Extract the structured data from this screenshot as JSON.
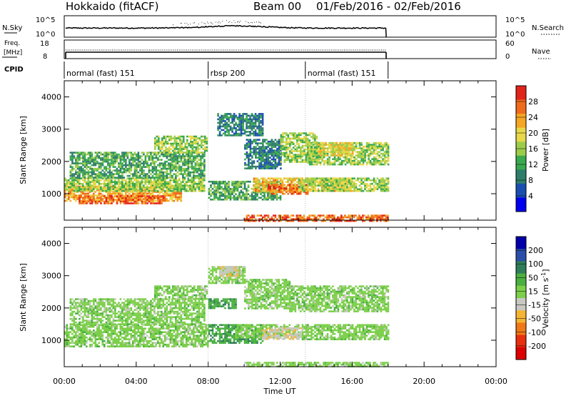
{
  "header": {
    "radar": "Hokkaido (fitACF)",
    "beam": "Beam 00",
    "date_range": "01/Feb/2016 - 02/Feb/2016"
  },
  "nsky_panel": {
    "left_label": "N.Sky",
    "left_ticks": [
      "10^5",
      "10^0"
    ],
    "right_ticks": [
      "10^5",
      "10^0"
    ],
    "right_label": "N.Search"
  },
  "freq_panel": {
    "left_label_line1": "Freq.",
    "left_label_line2": "[MHz]",
    "left_ticks": [
      "18",
      "8"
    ],
    "right_ticks": [
      "60",
      "0"
    ],
    "right_label": "Nave"
  },
  "cpid_panel": {
    "label": "CPID",
    "segments": [
      {
        "label": "normal (fast) 151",
        "start_hour": 0.0,
        "end_hour": 8.0
      },
      {
        "label": "rbsp 200",
        "start_hour": 8.0,
        "end_hour": 13.4
      },
      {
        "label": "normal (fast) 151",
        "start_hour": 13.4,
        "end_hour": 18.0
      }
    ]
  },
  "colors": {
    "power_scale": [
      "#0000ee",
      "#1a4fb0",
      "#2e7d6a",
      "#3aa94f",
      "#9ccd4a",
      "#e8d84a",
      "#f5a623",
      "#ef6a1a",
      "#e2231a"
    ],
    "velocity_scale": [
      "#0000aa",
      "#2a4fa8",
      "#2e7d5a",
      "#4ab040",
      "#7ccf4a",
      "#c8c8c0",
      "#f5b533",
      "#f07818",
      "#e83010",
      "#dd0000"
    ],
    "data_lines": "#000000"
  },
  "chart_data": [
    {
      "type": "heatmap",
      "name": "power_panel",
      "xlabel": "",
      "ylabel": "Slant Range [km]",
      "xlim": [
        0,
        24
      ],
      "ylim": [
        180,
        4500
      ],
      "yticks": [
        1000,
        2000,
        3000,
        4000
      ],
      "xticks": [
        0,
        4,
        8,
        12,
        16,
        20,
        24
      ],
      "colorbar": {
        "label": "Power [dB]",
        "range": [
          0,
          32
        ],
        "tick_labels": [
          "4",
          "8",
          "12",
          "16",
          "20",
          "24",
          "28"
        ]
      },
      "regions": [
        {
          "x0": 0.0,
          "x1": 6.5,
          "y0": 800,
          "y1": 1250,
          "value": 24
        },
        {
          "x0": 0.8,
          "x1": 5.5,
          "y0": 700,
          "y1": 950,
          "value": 28
        },
        {
          "x0": 0.0,
          "x1": 7.8,
          "y0": 1100,
          "y1": 1500,
          "value": 16
        },
        {
          "x0": 0.3,
          "x1": 7.8,
          "y0": 1500,
          "y1": 2300,
          "value": 12
        },
        {
          "x0": 5.0,
          "x1": 7.9,
          "y0": 2300,
          "y1": 2800,
          "value": 16
        },
        {
          "x0": 8.0,
          "x1": 12.0,
          "y0": 800,
          "y1": 1400,
          "value": 12
        },
        {
          "x0": 10.5,
          "x1": 16.0,
          "y0": 1100,
          "y1": 1500,
          "value": 22
        },
        {
          "x0": 11.3,
          "x1": 13.5,
          "y0": 1000,
          "y1": 1300,
          "value": 28
        },
        {
          "x0": 13.0,
          "x1": 18.0,
          "y0": 1100,
          "y1": 1500,
          "value": 16
        },
        {
          "x0": 13.5,
          "x1": 18.0,
          "y0": 1900,
          "y1": 2600,
          "value": 16
        },
        {
          "x0": 14.0,
          "x1": 16.0,
          "y0": 2200,
          "y1": 2600,
          "value": 20
        },
        {
          "x0": 8.5,
          "x1": 11.0,
          "y0": 2800,
          "y1": 3500,
          "value": 8
        },
        {
          "x0": 10.0,
          "x1": 12.0,
          "y0": 1800,
          "y1": 2700,
          "value": 8
        },
        {
          "x0": 12.0,
          "x1": 14.0,
          "y0": 2000,
          "y1": 2900,
          "value": 16
        },
        {
          "x0": 10.0,
          "x1": 18.0,
          "y0": 180,
          "y1": 350,
          "value": 28
        }
      ]
    },
    {
      "type": "heatmap",
      "name": "velocity_panel",
      "xlabel": "Time UT",
      "ylabel": "Slant Range [km]",
      "xlim": [
        0,
        24
      ],
      "ylim": [
        180,
        4500
      ],
      "yticks": [
        1000,
        2000,
        3000,
        4000
      ],
      "xticks": [
        0,
        4,
        8,
        12,
        16,
        20,
        24
      ],
      "xtick_labels": [
        "00:00",
        "04:00",
        "08:00",
        "12:00",
        "16:00",
        "20:00",
        "00:00"
      ],
      "colorbar": {
        "label": "Velocity [m s-1]",
        "tick_labels": [
          "200",
          "100",
          "50",
          "15",
          "-15",
          "-50",
          "-100",
          "-200"
        ]
      },
      "regions": [
        {
          "x0": 0.0,
          "x1": 8.0,
          "y0": 800,
          "y1": 1500,
          "value": 0
        },
        {
          "x0": 0.3,
          "x1": 7.8,
          "y0": 1500,
          "y1": 2300,
          "value": 0
        },
        {
          "x0": 5.0,
          "x1": 7.9,
          "y0": 2300,
          "y1": 2700,
          "value": 0
        },
        {
          "x0": 8.0,
          "x1": 11.0,
          "y0": 900,
          "y1": 1500,
          "value": 40
        },
        {
          "x0": 9.5,
          "x1": 13.0,
          "y0": 1100,
          "y1": 1500,
          "value": 0
        },
        {
          "x0": 11.0,
          "x1": 13.2,
          "y0": 1050,
          "y1": 1400,
          "value": -40
        },
        {
          "x0": 13.2,
          "x1": 18.0,
          "y0": 1050,
          "y1": 1500,
          "value": 0
        },
        {
          "x0": 12.5,
          "x1": 18.0,
          "y0": 1900,
          "y1": 2700,
          "value": 0
        },
        {
          "x0": 10.0,
          "x1": 12.5,
          "y0": 2000,
          "y1": 2900,
          "value": 0
        },
        {
          "x0": 8.0,
          "x1": 9.5,
          "y0": 2000,
          "y1": 2300,
          "value": 40
        },
        {
          "x0": 8.0,
          "x1": 10.0,
          "y0": 2800,
          "y1": 3300,
          "value": 0
        },
        {
          "x0": 8.6,
          "x1": 9.6,
          "y0": 3000,
          "y1": 3300,
          "value": -40
        },
        {
          "x0": 10.0,
          "x1": 18.0,
          "y0": 180,
          "y1": 330,
          "value": 0
        }
      ]
    }
  ]
}
